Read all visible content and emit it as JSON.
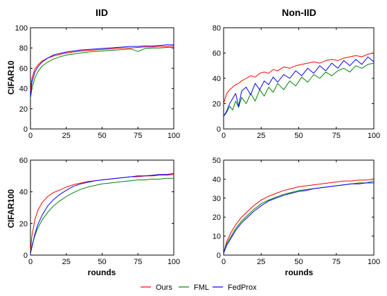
{
  "figure": {
    "col_titles": [
      "IID",
      "Non-IID"
    ],
    "row_labels": [
      "CIFAR10",
      "CIFAR100"
    ],
    "xlabel": "rounds",
    "legend": [
      {
        "name": "Ours",
        "color": "#ff0000"
      },
      {
        "name": "FML",
        "color": "#008000"
      },
      {
        "name": "FedProx",
        "color": "#0000ff"
      }
    ]
  },
  "chart_data": [
    {
      "type": "line",
      "panel": "IID / CIFAR10",
      "xlim": [
        0,
        100
      ],
      "ylim": [
        0,
        100
      ],
      "xticks": [
        0,
        25,
        50,
        75,
        100
      ],
      "yticks": [
        0,
        20,
        40,
        60,
        80,
        100
      ],
      "x": [
        0,
        1,
        3,
        5,
        8,
        12,
        16,
        20,
        25,
        30,
        35,
        40,
        45,
        50,
        55,
        60,
        65,
        70,
        75,
        80,
        85,
        90,
        95,
        100
      ],
      "series": [
        {
          "name": "Ours",
          "color": "#ff0000",
          "values": [
            38,
            50,
            59,
            63,
            67,
            70,
            72,
            73.5,
            75,
            76,
            77,
            77.5,
            78,
            78.5,
            79,
            79.5,
            80,
            80,
            80.5,
            81,
            81,
            81.5,
            81.5,
            82
          ]
        },
        {
          "name": "FML",
          "color": "#008000",
          "values": [
            30,
            40,
            50,
            56,
            62,
            66,
            69,
            71,
            73,
            74,
            75,
            76,
            76.5,
            77,
            77.5,
            78,
            78.5,
            79,
            76.5,
            79.5,
            80,
            80,
            80.5,
            80.5
          ]
        },
        {
          "name": "FedProx",
          "color": "#0000ff",
          "values": [
            32,
            46,
            56,
            61,
            66,
            70,
            73,
            74.5,
            76,
            77,
            78,
            78.5,
            79,
            79.5,
            80,
            80.5,
            81,
            81.5,
            81.5,
            82,
            82,
            82.5,
            83,
            83
          ]
        }
      ]
    },
    {
      "type": "line",
      "panel": "Non-IID / CIFAR10",
      "xlim": [
        0,
        100
      ],
      "ylim": [
        0,
        80
      ],
      "xticks": [
        0,
        25,
        50,
        75,
        100
      ],
      "yticks": [
        0,
        20,
        40,
        60,
        80
      ],
      "x": [
        0,
        2,
        4,
        6,
        8,
        10,
        12,
        15,
        18,
        21,
        24,
        27,
        30,
        33,
        36,
        40,
        44,
        48,
        52,
        56,
        60,
        64,
        68,
        72,
        76,
        80,
        84,
        88,
        92,
        96,
        100
      ],
      "series": [
        {
          "name": "Ours",
          "color": "#ff0000",
          "values": [
            20,
            28,
            31,
            33,
            35,
            36,
            38,
            40,
            42,
            41,
            44,
            45,
            44,
            47,
            46,
            49,
            48,
            50,
            51,
            52,
            53,
            52,
            54,
            55,
            54,
            56,
            57,
            58,
            57,
            59,
            60
          ]
        },
        {
          "name": "FML",
          "color": "#008000",
          "values": [
            10,
            13,
            18,
            15,
            22,
            17,
            25,
            20,
            28,
            22,
            31,
            26,
            33,
            29,
            36,
            31,
            38,
            34,
            41,
            37,
            43,
            40,
            45,
            42,
            46,
            48,
            45,
            50,
            48,
            51,
            52
          ]
        },
        {
          "name": "FedProx",
          "color": "#0000ff",
          "values": [
            10,
            14,
            20,
            24,
            28,
            18,
            30,
            33,
            27,
            36,
            31,
            38,
            35,
            41,
            37,
            43,
            40,
            46,
            42,
            48,
            44,
            50,
            46,
            52,
            48,
            54,
            50,
            55,
            51,
            57,
            53
          ]
        }
      ]
    },
    {
      "type": "line",
      "panel": "IID / CIFAR100",
      "xlim": [
        0,
        100
      ],
      "ylim": [
        0,
        60
      ],
      "xticks": [
        0,
        25,
        50,
        75,
        100
      ],
      "yticks": [
        0,
        20,
        40,
        60
      ],
      "x": [
        0,
        1,
        3,
        5,
        8,
        12,
        16,
        20,
        25,
        30,
        35,
        40,
        45,
        50,
        55,
        60,
        65,
        70,
        75,
        80,
        85,
        90,
        95,
        100
      ],
      "series": [
        {
          "name": "Ours",
          "color": "#ff0000",
          "values": [
            3,
            12,
            22,
            28,
            33,
            37,
            39.5,
            41,
            43,
            44.5,
            45.5,
            46.5,
            47,
            47.5,
            48,
            48.5,
            49,
            49.5,
            49.5,
            50,
            50,
            50.5,
            50.5,
            51
          ]
        },
        {
          "name": "FML",
          "color": "#008000",
          "values": [
            2,
            6,
            12,
            17,
            22,
            27,
            31,
            34,
            37,
            39.5,
            41.5,
            43,
            44,
            45,
            45.5,
            46,
            46.5,
            47,
            47.5,
            47.5,
            48,
            48,
            48.5,
            48.5
          ]
        },
        {
          "name": "FedProx",
          "color": "#0000ff",
          "values": [
            1,
            5,
            13,
            19,
            25,
            31,
            35,
            38,
            41,
            43.5,
            45,
            46,
            47,
            47.5,
            48,
            48.5,
            49,
            49.5,
            50,
            50,
            50.5,
            51,
            51,
            51.5
          ]
        }
      ]
    },
    {
      "type": "line",
      "panel": "Non-IID / CIFAR100",
      "xlim": [
        0,
        100
      ],
      "ylim": [
        0,
        50
      ],
      "xticks": [
        0,
        25,
        50,
        75,
        100
      ],
      "yticks": [
        0,
        10,
        20,
        30,
        40,
        50
      ],
      "x": [
        0,
        2,
        5,
        8,
        12,
        16,
        20,
        25,
        30,
        35,
        40,
        45,
        50,
        55,
        60,
        65,
        70,
        75,
        80,
        85,
        90,
        95,
        100
      ],
      "series": [
        {
          "name": "Ours",
          "color": "#ff0000",
          "values": [
            1,
            7,
            12,
            16,
            20,
            23,
            26,
            29,
            31,
            32.5,
            34,
            35,
            36,
            36.5,
            37,
            37.5,
            38,
            38.5,
            39,
            39,
            39.5,
            39.5,
            40
          ]
        },
        {
          "name": "FML",
          "color": "#008000",
          "values": [
            1,
            6,
            10,
            14,
            18,
            21,
            24,
            27,
            29,
            30.5,
            32,
            33,
            34,
            34.5,
            35,
            35.5,
            36,
            36.5,
            37,
            37.5,
            38,
            38,
            39
          ]
        },
        {
          "name": "FedProx",
          "color": "#0000ff",
          "values": [
            1,
            5,
            9,
            13,
            17,
            20,
            23,
            26,
            28.5,
            30,
            31.5,
            32.5,
            33.5,
            34,
            35,
            35.5,
            36,
            36.5,
            37,
            37.5,
            37.5,
            38,
            38
          ]
        }
      ]
    }
  ]
}
